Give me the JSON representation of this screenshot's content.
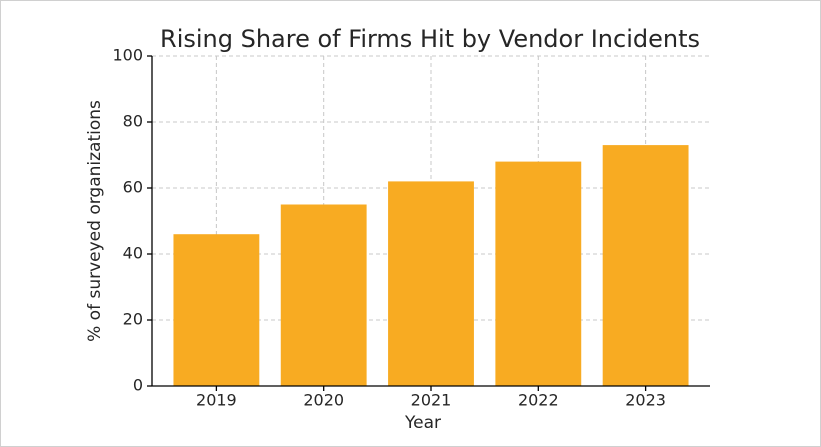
{
  "chart_data": {
    "type": "bar",
    "title": "Rising Share of Firms Hit by Vendor Incidents",
    "x_label": "Year",
    "y_label": "% of surveyed organizations",
    "categories": [
      "2019",
      "2020",
      "2021",
      "2022",
      "2023"
    ],
    "values": [
      46,
      55,
      62,
      68,
      73
    ],
    "color": "#f8ab22",
    "ylim": [
      0,
      100
    ],
    "yticks": [
      0,
      20,
      40,
      60,
      80,
      100
    ],
    "grid": true
  }
}
